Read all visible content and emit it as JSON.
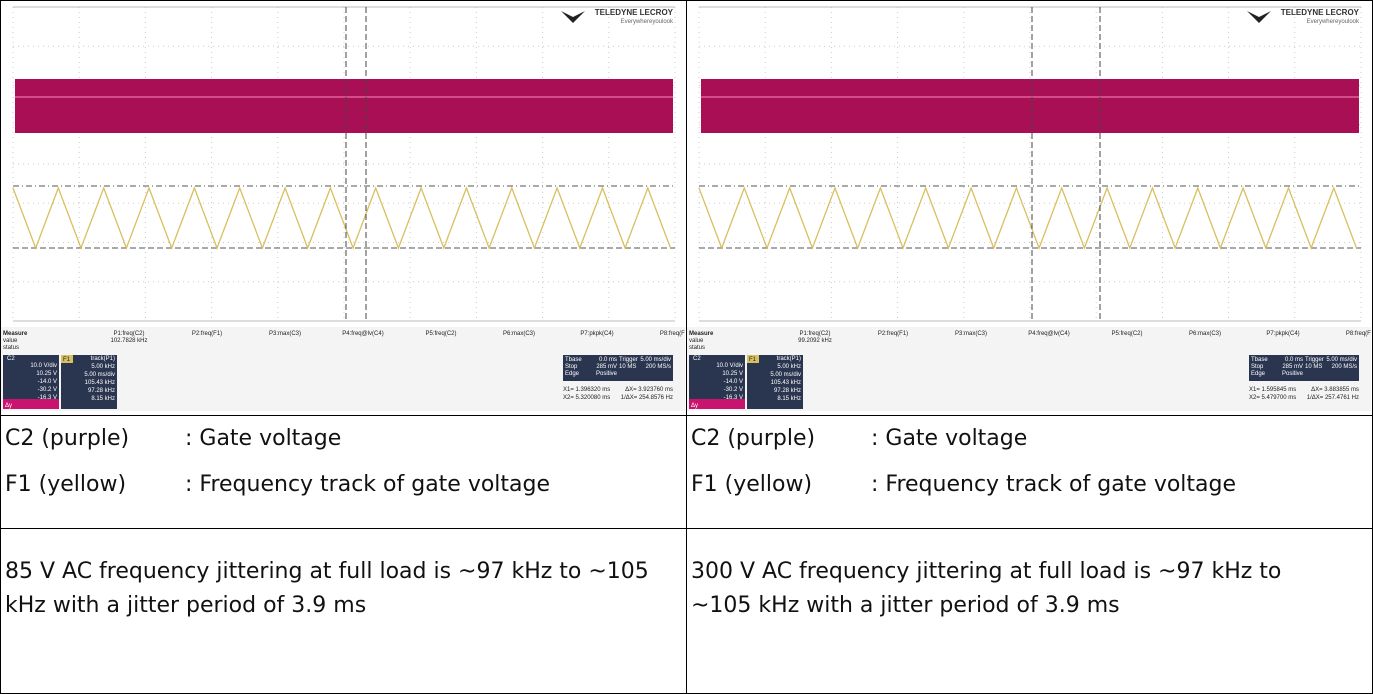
{
  "panels": [
    {
      "scope": {
        "brand": "TELEDYNE LECROY",
        "tagline": "Everywhereyoulook",
        "measure_labels": [
          "Measure",
          "value",
          "status"
        ],
        "params": [
          "P1:freq(C2)",
          "P2:freq(F1)",
          "P3:max(C3)",
          "P4:freq@lv(C4)",
          "P5:freq(C2)",
          "P6:max(C3)",
          "P7:pkpk(C4)",
          "P8:freq(F1)"
        ],
        "p1_value": "102.7828 kHz",
        "c2": {
          "name": "C2",
          "lines": [
            "10.0 V/div",
            "10.25 V",
            "-14.0 V",
            "-30.2 V",
            "-16.3 V"
          ]
        },
        "f1": {
          "name": "F1",
          "lines": [
            "track(P1)",
            "5.00 kHz",
            "5.00 ms/div",
            "105.43 kHz",
            "97.28 kHz",
            "8.15 kHz"
          ]
        },
        "dy": "Δy",
        "timebase": [
          "Tbase",
          "0.0 ms",
          "Trigger",
          "5.00 ms/div",
          "Stop",
          "285 mV",
          "10 MS",
          "200 MS/s",
          "Edge",
          "Positive"
        ],
        "cursors": [
          "X1= 1.396320 ms",
          "ΔX= 3.923760 ms",
          "X2= 5.320080 ms",
          "1/ΔX= 254.8576 Hz"
        ]
      },
      "legend": [
        {
          "name": "C2 (purple)",
          "desc": ": Gate voltage"
        },
        {
          "name": "F1 (yellow)",
          "desc": ": Frequency track of gate voltage"
        }
      ],
      "caption": "85 V AC frequency jittering at full load is ~97 kHz to ~105 kHz with a jitter period of 3.9 ms"
    },
    {
      "scope": {
        "brand": "TELEDYNE LECROY",
        "tagline": "Everywhereyoulook",
        "measure_labels": [
          "Measure",
          "value",
          "status"
        ],
        "params": [
          "P1:freq(C2)",
          "P2:freq(F1)",
          "P3:max(C3)",
          "P4:freq@lv(C4)",
          "P5:freq(C2)",
          "P6:max(C3)",
          "P7:pkpk(C4)",
          "P8:freq(F1)"
        ],
        "p1_value": "99.2092 kHz",
        "c2": {
          "name": "C2",
          "lines": [
            "10.0 V/div",
            "10.25 V",
            "-14.0 V",
            "-30.2 V",
            "-16.3 V"
          ]
        },
        "f1": {
          "name": "F1",
          "lines": [
            "track(P1)",
            "5.00 kHz",
            "5.00 ms/div",
            "105.43 kHz",
            "97.28 kHz",
            "8.15 kHz"
          ]
        },
        "dy": "Δy",
        "timebase": [
          "Tbase",
          "0.0 ms",
          "Trigger",
          "5.00 ms/div",
          "Stop",
          "285 mV",
          "10 MS",
          "200 MS/s",
          "Edge",
          "Positive"
        ],
        "cursors": [
          "X1= 1.595845 ms",
          "ΔX= 3.883855 ms",
          "X2= 5.479700 ms",
          "1/ΔX= 257.4761 Hz"
        ]
      },
      "legend": [
        {
          "name": "C2 (purple)",
          "desc": ": Gate voltage"
        },
        {
          "name": "F1 (yellow)",
          "desc": ": Frequency track of gate voltage"
        }
      ],
      "caption": "300 V AC frequency jittering at full load is ~97 kHz to ~105 kHz with a jitter period of 3.9 ms"
    }
  ]
}
